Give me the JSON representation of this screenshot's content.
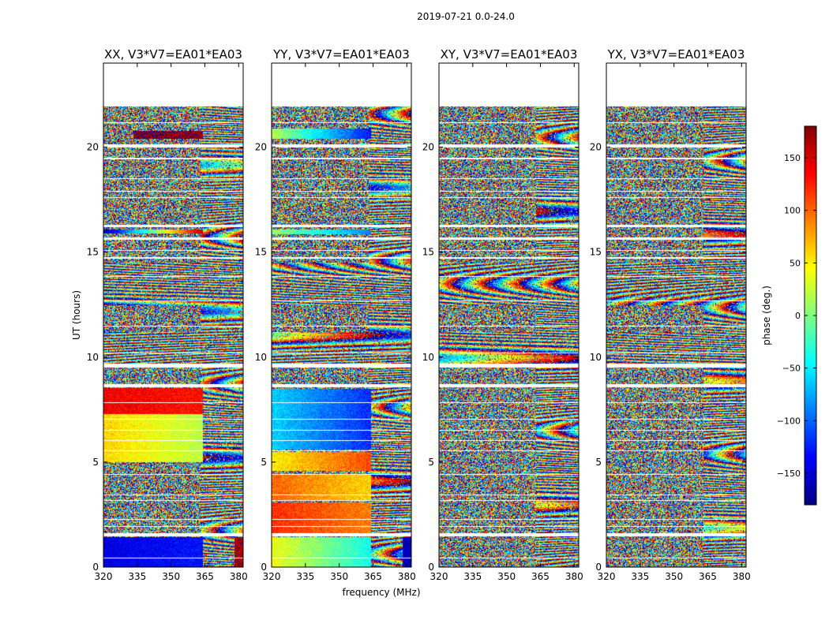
{
  "figure": {
    "suptitle": "2019-07-21 0.0-24.0"
  },
  "chart_data": {
    "type": "heatmap",
    "shared_xlabel": "frequency (MHz)",
    "ylabel": "UT (hours)",
    "xlim": [
      320,
      382
    ],
    "ylim": [
      0,
      24
    ],
    "xticks": [
      "320",
      "335",
      "350",
      "365",
      "380"
    ],
    "xtick_values": [
      320,
      335,
      350,
      365,
      380
    ],
    "yticks": [
      "0",
      "5",
      "10",
      "15",
      "20"
    ],
    "ytick_values": [
      0,
      5,
      10,
      15,
      20
    ],
    "colorbar": {
      "label": "phase (deg.)",
      "range": [
        -180,
        180
      ],
      "ticks": [
        "−150",
        "−100",
        "−50",
        "0",
        "50",
        "100",
        "150"
      ],
      "tick_values": [
        -150,
        -100,
        -50,
        0,
        50,
        100,
        150
      ],
      "colormap": "jet",
      "colors": [
        "#00007f",
        "#0000ff",
        "#007fff",
        "#00ffff",
        "#7fff7f",
        "#ffff00",
        "#ff7f00",
        "#ff0000",
        "#7f0000"
      ]
    },
    "panels": [
      {
        "title": "XX, V3*V7=EA01*EA03",
        "pol": "XX"
      },
      {
        "title": "YY, V3*V7=EA01*EA03",
        "pol": "YY"
      },
      {
        "title": "XY, V3*V7=EA01*EA03",
        "pol": "XY"
      },
      {
        "title": "YX, V3*V7=EA01*EA03",
        "pol": "YX"
      }
    ],
    "data_gaps_hours": [
      [
        21.95,
        24.0
      ],
      [
        20.0,
        20.15
      ],
      [
        19.4,
        19.5
      ],
      [
        16.2,
        16.3
      ],
      [
        15.6,
        15.7
      ],
      [
        14.7,
        14.75
      ],
      [
        9.5,
        9.7
      ],
      [
        8.55,
        8.7
      ],
      [
        1.45,
        1.62
      ]
    ],
    "white_lines_hours": [
      0.45,
      1.95,
      2.3,
      3.2,
      3.45,
      4.45,
      5.55,
      6.05,
      6.55,
      7.05,
      7.85,
      10.2,
      11.5,
      12.7,
      13.85,
      15.1,
      17.6,
      17.9,
      18.5,
      21.2
    ],
    "smooth_blocks": {
      "XX": [
        {
          "t": [
            0.0,
            1.45
          ],
          "f": [
            320,
            364
          ],
          "phase_start": -145,
          "phase_end": -130
        },
        {
          "t": [
            0.0,
            1.45
          ],
          "f": [
            378,
            382
          ],
          "phase_start": 165,
          "phase_end": 165
        },
        {
          "t": [
            5.0,
            7.3
          ],
          "f": [
            320,
            364
          ],
          "phase_start": 60,
          "phase_end": 20
        },
        {
          "t": [
            7.3,
            8.55
          ],
          "f": [
            320,
            364
          ],
          "phase_start": 140,
          "phase_end": 130
        },
        {
          "t": [
            20.4,
            20.8
          ],
          "f": [
            333,
            364
          ],
          "phase_start": 175,
          "phase_end": 170
        },
        {
          "t": [
            15.9,
            16.1
          ],
          "f": [
            320,
            364
          ],
          "phase_start": -165,
          "phase_end": 160
        }
      ],
      "YY": [
        {
          "t": [
            0.0,
            1.45
          ],
          "f": [
            320,
            364
          ],
          "phase_start": 40,
          "phase_end": -40
        },
        {
          "t": [
            0.0,
            1.45
          ],
          "f": [
            378,
            382
          ],
          "phase_start": -160,
          "phase_end": -160
        },
        {
          "t": [
            1.62,
            3.1
          ],
          "f": [
            320,
            364
          ],
          "phase_start": 120,
          "phase_end": 90
        },
        {
          "t": [
            3.2,
            4.4
          ],
          "f": [
            320,
            364
          ],
          "phase_start": 100,
          "phase_end": 60
        },
        {
          "t": [
            4.6,
            5.5
          ],
          "f": [
            320,
            364
          ],
          "phase_start": 50,
          "phase_end": 110
        },
        {
          "t": [
            5.6,
            8.5
          ],
          "f": [
            320,
            364
          ],
          "phase_start": -60,
          "phase_end": -120
        },
        {
          "t": [
            20.4,
            20.9
          ],
          "f": [
            320,
            364
          ],
          "phase_start": 20,
          "phase_end": -130
        },
        {
          "t": [
            15.85,
            16.1
          ],
          "f": [
            320,
            364
          ],
          "phase_start": 10,
          "phase_end": -90
        }
      ]
    }
  }
}
